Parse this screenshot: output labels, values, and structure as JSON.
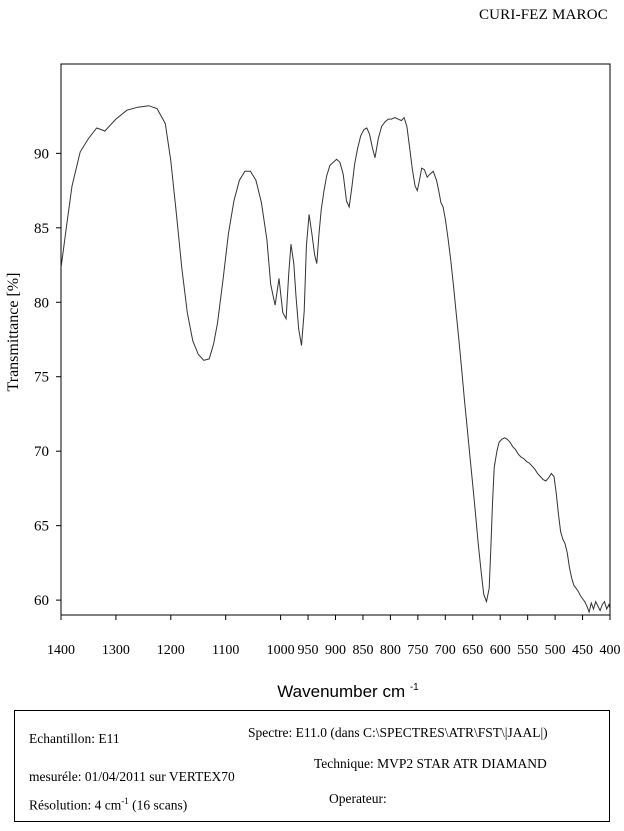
{
  "header": {
    "organization": "CURI-FEZ MAROC"
  },
  "chart_data": {
    "type": "line",
    "title": "",
    "xlabel": "Wavenumber cm",
    "xlabel_sup": "-1",
    "ylabel": "Transmittance [%]",
    "xlim": [
      1400,
      400
    ],
    "ylim": [
      59,
      96
    ],
    "x_reversed": true,
    "x_ticks": [
      1400,
      1300,
      1200,
      1100,
      1000,
      950,
      900,
      850,
      800,
      750,
      700,
      650,
      600,
      550,
      500,
      450,
      400
    ],
    "x_tick_labels": [
      "1400",
      "1300",
      "1200",
      "1100",
      "1000",
      "950",
      "900",
      "850",
      "800",
      "750",
      "700",
      "650",
      "600",
      "550",
      "500",
      "450",
      "400"
    ],
    "y_ticks": [
      60,
      65,
      70,
      75,
      80,
      85,
      90
    ],
    "y_tick_labels": [
      "60",
      "65",
      "70",
      "75",
      "80",
      "85",
      "90"
    ],
    "grid": false,
    "line_color": "#333333",
    "series": [
      {
        "x": [
          1400,
          1390,
          1380,
          1365,
          1350,
          1335,
          1320,
          1300,
          1280,
          1260,
          1240,
          1225,
          1210,
          1200,
          1190,
          1180,
          1170,
          1160,
          1150,
          1140,
          1130,
          1122,
          1115,
          1105,
          1095,
          1085,
          1075,
          1065,
          1055,
          1045,
          1035,
          1025,
          1018,
          1010,
          1003,
          996,
          990,
          985,
          981,
          976,
          972,
          967,
          962,
          957,
          953,
          948,
          943,
          938,
          934,
          930,
          926,
          921,
          916,
          910,
          904,
          898,
          892,
          886,
          880,
          875,
          870,
          865,
          860,
          854,
          848,
          843,
          838,
          833,
          828,
          822,
          816,
          810,
          804,
          798,
          792,
          786,
          780,
          775,
          770,
          765,
          760,
          755,
          751,
          747,
          743,
          738,
          733,
          728,
          722,
          716,
          712,
          708,
          704,
          700,
          695,
          690,
          685,
          680,
          675,
          670,
          665,
          660,
          655,
          650,
          645,
          640,
          635,
          630,
          625,
          620,
          617,
          614,
          611,
          606,
          602,
          597,
          592,
          587,
          582,
          577,
          572,
          567,
          562,
          557,
          552,
          547,
          542,
          537,
          532,
          527,
          522,
          517,
          512,
          507,
          502,
          498,
          494,
          490,
          486,
          482,
          478,
          474,
          470,
          466,
          462,
          458,
          454,
          450,
          446,
          442,
          438,
          434,
          430,
          426,
          422,
          418,
          414,
          410,
          406,
          402,
          400
        ],
        "y": [
          82.3,
          85.1,
          87.8,
          90.1,
          91.0,
          91.7,
          91.5,
          92.3,
          92.9,
          93.1,
          93.2,
          93.0,
          92.0,
          89.5,
          86.0,
          82.3,
          79.3,
          77.4,
          76.5,
          76.1,
          76.2,
          77.2,
          78.6,
          81.5,
          84.6,
          86.8,
          88.2,
          88.8,
          88.8,
          88.2,
          86.7,
          84.2,
          81.2,
          79.8,
          81.6,
          79.3,
          78.9,
          82.0,
          83.9,
          82.6,
          80.4,
          78.2,
          77.1,
          79.4,
          83.8,
          85.9,
          84.6,
          83.2,
          82.6,
          84.6,
          86.2,
          87.5,
          88.5,
          89.2,
          89.4,
          89.6,
          89.4,
          88.6,
          86.8,
          86.4,
          87.8,
          89.3,
          90.3,
          91.2,
          91.6,
          91.7,
          91.3,
          90.4,
          89.7,
          91.0,
          91.8,
          92.1,
          92.3,
          92.3,
          92.4,
          92.3,
          92.2,
          92.4,
          91.8,
          90.4,
          88.9,
          87.8,
          87.5,
          88.2,
          89.0,
          88.9,
          88.4,
          88.6,
          88.8,
          88.2,
          87.5,
          86.7,
          86.4,
          85.6,
          84.3,
          82.8,
          81.1,
          79.2,
          77.4,
          75.4,
          73.4,
          71.5,
          69.6,
          67.7,
          65.8,
          63.8,
          62.0,
          60.4,
          59.9,
          60.8,
          63.6,
          66.5,
          68.9,
          70.0,
          70.6,
          70.8,
          70.9,
          70.8,
          70.6,
          70.3,
          70.1,
          69.8,
          69.6,
          69.5,
          69.3,
          69.2,
          69.0,
          68.8,
          68.5,
          68.3,
          68.1,
          68.0,
          68.2,
          68.5,
          68.3,
          67.2,
          65.8,
          64.6,
          64.1,
          63.8,
          63.2,
          62.2,
          61.5,
          61.0,
          60.8,
          60.6,
          60.3,
          60.1,
          59.9,
          59.6,
          59.2,
          59.8,
          59.4,
          59.9,
          59.6,
          59.3,
          59.7,
          59.9,
          59.4,
          59.7,
          59.4
        ]
      }
    ]
  },
  "info": {
    "echantillon": "Echantillon: E11",
    "spectre": "Spectre: E11.0 (dans C:\\SPECTRES\\ATR\\FST\\|JAAL|)",
    "technique": "Technique: MVP2 STAR ATR DIAMAND",
    "mesure": "mesuréle: 01/04/2011 sur VERTEX70",
    "resolution_pre": "Résolution: 4 cm",
    "resolution_sup": "-1",
    "resolution_post": " (16 scans)",
    "operateur": "Operateur:"
  }
}
